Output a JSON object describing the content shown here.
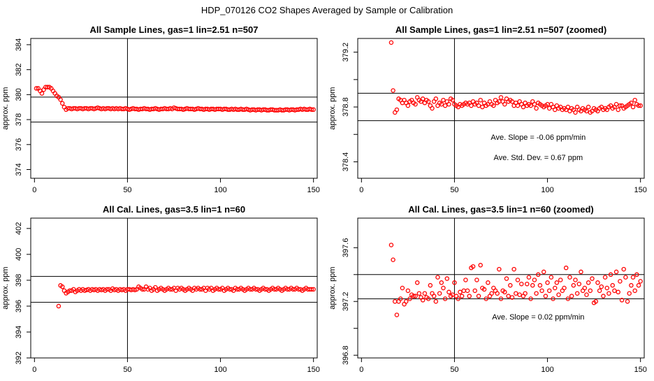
{
  "page_title": "HDP_070126  CO2 Shapes Averaged by Sample or Calibration",
  "colors": {
    "point": "#ff0000",
    "axis": "#000000",
    "line": "#000000",
    "background": "#ffffff"
  },
  "chart_data": [
    {
      "type": "scatter",
      "title": "All Sample Lines, gas=1 lin=2.51 n=507",
      "ylabel": "approx. ppm",
      "xlim": [
        -2,
        152
      ],
      "ylim": [
        373.3,
        384.5
      ],
      "xticks": [
        0,
        50,
        100,
        150
      ],
      "yticks": [
        374,
        376,
        378,
        380,
        382,
        384
      ],
      "vline": 50,
      "hlines": [
        379.8,
        377.8
      ],
      "annotations": [],
      "marker": "open-circle",
      "x": [
        1,
        2,
        3,
        4,
        5,
        6,
        7,
        8,
        9,
        10,
        11,
        12,
        13,
        14,
        15,
        16,
        17,
        18,
        19,
        20,
        21,
        22,
        23,
        24,
        25,
        26,
        27,
        28,
        29,
        30,
        31,
        32,
        33,
        34,
        35,
        36,
        37,
        38,
        39,
        40,
        41,
        42,
        43,
        44,
        45,
        46,
        47,
        48,
        49,
        50,
        51,
        52,
        53,
        54,
        55,
        56,
        57,
        58,
        59,
        60,
        61,
        62,
        63,
        64,
        65,
        66,
        67,
        68,
        69,
        70,
        71,
        72,
        73,
        74,
        75,
        76,
        77,
        78,
        79,
        80,
        81,
        82,
        83,
        84,
        85,
        86,
        87,
        88,
        89,
        90,
        91,
        92,
        93,
        94,
        95,
        96,
        97,
        98,
        99,
        100,
        101,
        102,
        103,
        104,
        105,
        106,
        107,
        108,
        109,
        110,
        111,
        112,
        113,
        114,
        115,
        116,
        117,
        118,
        119,
        120,
        121,
        122,
        123,
        124,
        125,
        126,
        127,
        128,
        129,
        130,
        131,
        132,
        133,
        134,
        135,
        136,
        137,
        138,
        139,
        140,
        141,
        142,
        143,
        144,
        145,
        146,
        147,
        148,
        149,
        150
      ],
      "y": [
        380.5,
        380.5,
        380.3,
        380.1,
        380.4,
        380.6,
        380.6,
        380.6,
        380.5,
        380.3,
        380.1,
        379.9,
        379.8,
        379.6,
        379.3,
        379.0,
        378.8,
        378.9,
        378.9,
        378.85,
        378.9,
        378.9,
        378.85,
        378.9,
        378.9,
        378.85,
        378.9,
        378.9,
        378.85,
        378.9,
        378.9,
        378.85,
        378.9,
        378.95,
        378.9,
        378.85,
        378.9,
        378.85,
        378.9,
        378.9,
        378.85,
        378.9,
        378.85,
        378.9,
        378.85,
        378.9,
        378.85,
        378.85,
        378.9,
        378.85,
        378.8,
        378.85,
        378.9,
        378.85,
        378.85,
        378.8,
        378.85,
        378.85,
        378.9,
        378.85,
        378.85,
        378.8,
        378.85,
        378.85,
        378.9,
        378.85,
        378.8,
        378.85,
        378.85,
        378.9,
        378.85,
        378.85,
        378.9,
        378.85,
        378.95,
        378.9,
        378.85,
        378.85,
        378.85,
        378.8,
        378.85,
        378.9,
        378.85,
        378.85,
        378.85,
        378.8,
        378.85,
        378.9,
        378.85,
        378.85,
        378.8,
        378.85,
        378.85,
        378.8,
        378.85,
        378.85,
        378.8,
        378.85,
        378.85,
        378.85,
        378.8,
        378.85,
        378.85,
        378.8,
        378.8,
        378.85,
        378.8,
        378.85,
        378.8,
        378.8,
        378.85,
        378.8,
        378.8,
        378.85,
        378.8,
        378.75,
        378.8,
        378.8,
        378.75,
        378.8,
        378.8,
        378.75,
        378.8,
        378.8,
        378.75,
        378.75,
        378.8,
        378.8,
        378.75,
        378.75,
        378.75,
        378.8,
        378.75,
        378.75,
        378.8,
        378.8,
        378.75,
        378.8,
        378.8,
        378.75,
        378.8,
        378.8,
        378.85,
        378.8,
        378.85,
        378.8,
        378.8,
        378.85,
        378.8,
        378.8
      ]
    },
    {
      "type": "scatter",
      "title": "All Sample Lines, gas=1 lin=2.51 n=507 (zoomed)",
      "ylabel": "approx. ppm",
      "xlim": [
        -2,
        152
      ],
      "ylim": [
        378.28,
        379.3
      ],
      "xticks": [
        0,
        50,
        100,
        150
      ],
      "yticks": [
        378.4,
        378.6,
        378.8,
        379.0,
        379.2
      ],
      "ytick_labels": [
        "378.4",
        "",
        "378.8",
        "",
        "379.2"
      ],
      "vline": 50,
      "hlines": [
        378.9,
        378.7
      ],
      "annotations": [
        "Ave. Slope =  -0.06  ppm/min",
        "Ave. Std. Dev. =  0.67  ppm"
      ],
      "marker": "open-circle",
      "x": [
        16,
        17,
        18,
        19,
        20,
        21,
        22,
        23,
        24,
        25,
        26,
        27,
        28,
        29,
        30,
        31,
        32,
        33,
        34,
        35,
        36,
        37,
        38,
        39,
        40,
        41,
        42,
        43,
        44,
        45,
        46,
        47,
        48,
        49,
        50,
        51,
        52,
        53,
        54,
        55,
        56,
        57,
        58,
        59,
        60,
        61,
        62,
        63,
        64,
        65,
        66,
        67,
        68,
        69,
        70,
        71,
        72,
        73,
        74,
        75,
        76,
        77,
        78,
        79,
        80,
        81,
        82,
        83,
        84,
        85,
        86,
        87,
        88,
        89,
        90,
        91,
        92,
        93,
        94,
        95,
        96,
        97,
        98,
        99,
        100,
        101,
        102,
        103,
        104,
        105,
        106,
        107,
        108,
        109,
        110,
        111,
        112,
        113,
        114,
        115,
        116,
        117,
        118,
        119,
        120,
        121,
        122,
        123,
        124,
        125,
        126,
        127,
        128,
        129,
        130,
        131,
        132,
        133,
        134,
        135,
        136,
        137,
        138,
        139,
        140,
        141,
        142,
        143,
        144,
        145,
        146,
        147,
        148,
        149,
        150
      ],
      "y": [
        379.27,
        378.92,
        378.76,
        378.78,
        378.86,
        378.85,
        378.83,
        378.85,
        378.83,
        378.81,
        378.84,
        378.85,
        378.83,
        378.82,
        378.87,
        378.85,
        378.84,
        378.86,
        378.83,
        378.85,
        378.84,
        378.81,
        378.79,
        378.84,
        378.86,
        378.81,
        378.83,
        378.82,
        378.85,
        378.81,
        378.84,
        378.82,
        378.86,
        378.85,
        378.82,
        378.81,
        378.8,
        378.82,
        378.81,
        378.82,
        378.83,
        378.82,
        378.83,
        378.81,
        378.84,
        378.82,
        378.83,
        378.81,
        378.85,
        378.8,
        378.83,
        378.81,
        378.82,
        378.84,
        378.82,
        378.81,
        378.85,
        378.83,
        378.84,
        378.87,
        378.84,
        378.82,
        378.86,
        378.84,
        378.85,
        378.84,
        378.81,
        378.83,
        378.81,
        378.84,
        378.82,
        378.8,
        378.83,
        378.81,
        378.82,
        378.81,
        378.84,
        378.82,
        378.79,
        378.83,
        378.82,
        378.81,
        378.8,
        378.81,
        378.82,
        378.79,
        378.82,
        378.8,
        378.78,
        378.81,
        378.79,
        378.8,
        378.78,
        378.79,
        378.78,
        378.8,
        378.77,
        378.79,
        378.78,
        378.76,
        378.8,
        378.78,
        378.77,
        378.79,
        378.78,
        378.77,
        378.8,
        378.76,
        378.77,
        378.79,
        378.78,
        378.77,
        378.79,
        378.8,
        378.78,
        378.79,
        378.78,
        378.8,
        378.81,
        378.79,
        378.8,
        378.82,
        378.78,
        378.81,
        378.81,
        378.79,
        378.8,
        378.81,
        378.82,
        378.83,
        378.8,
        378.85,
        378.82,
        378.81,
        378.81
      ]
    },
    {
      "type": "scatter",
      "title": "All Cal. Lines, gas=3.5 lin=1 n=60",
      "ylabel": "approx. ppm",
      "xlim": [
        -2,
        152
      ],
      "ylim": [
        392.0,
        402.8
      ],
      "xticks": [
        0,
        50,
        100,
        150
      ],
      "yticks": [
        392,
        394,
        396,
        398,
        400,
        402
      ],
      "vline": 50,
      "hlines": [
        398.3,
        396.3
      ],
      "annotations": [],
      "marker": "open-circle",
      "x": [
        13,
        14,
        15,
        16,
        17,
        18,
        19,
        20,
        21,
        22,
        23,
        24,
        25,
        26,
        27,
        28,
        29,
        30,
        31,
        32,
        33,
        34,
        35,
        36,
        37,
        38,
        39,
        40,
        41,
        42,
        43,
        44,
        45,
        46,
        47,
        48,
        49,
        50,
        51,
        52,
        53,
        54,
        55,
        56,
        57,
        58,
        59,
        60,
        61,
        62,
        63,
        64,
        65,
        66,
        67,
        68,
        69,
        70,
        71,
        72,
        73,
        74,
        75,
        76,
        77,
        78,
        79,
        80,
        81,
        82,
        83,
        84,
        85,
        86,
        87,
        88,
        89,
        90,
        91,
        92,
        93,
        94,
        95,
        96,
        97,
        98,
        99,
        100,
        101,
        102,
        103,
        104,
        105,
        106,
        107,
        108,
        109,
        110,
        111,
        112,
        113,
        114,
        115,
        116,
        117,
        118,
        119,
        120,
        121,
        122,
        123,
        124,
        125,
        126,
        127,
        128,
        129,
        130,
        131,
        132,
        133,
        134,
        135,
        136,
        137,
        138,
        139,
        140,
        141,
        142,
        143,
        144,
        145,
        146,
        147,
        148,
        149,
        150
      ],
      "y": [
        396.0,
        397.6,
        397.5,
        397.2,
        397.0,
        397.1,
        397.2,
        397.2,
        397.3,
        397.1,
        397.2,
        397.3,
        397.2,
        397.3,
        397.2,
        397.25,
        397.3,
        397.2,
        397.3,
        397.25,
        397.3,
        397.2,
        397.3,
        397.25,
        397.3,
        397.2,
        397.3,
        397.3,
        397.2,
        397.35,
        397.25,
        397.3,
        397.2,
        397.3,
        397.25,
        397.3,
        397.2,
        397.3,
        397.3,
        397.25,
        397.3,
        397.25,
        397.3,
        397.5,
        397.4,
        397.3,
        397.3,
        397.5,
        397.3,
        397.4,
        397.2,
        397.3,
        397.45,
        397.2,
        397.3,
        397.4,
        397.3,
        397.2,
        397.3,
        397.4,
        397.3,
        397.3,
        397.4,
        397.2,
        397.4,
        397.3,
        397.4,
        397.3,
        397.2,
        397.3,
        397.4,
        397.3,
        397.2,
        397.4,
        397.3,
        397.4,
        397.3,
        397.3,
        397.4,
        397.2,
        397.4,
        397.3,
        397.4,
        397.2,
        397.3,
        397.4,
        397.3,
        397.3,
        397.4,
        397.2,
        397.3,
        397.4,
        397.3,
        397.3,
        397.2,
        397.4,
        397.3,
        397.3,
        397.4,
        397.3,
        397.2,
        397.3,
        397.4,
        397.3,
        397.3,
        397.4,
        397.3,
        397.3,
        397.2,
        397.3,
        397.4,
        397.3,
        397.3,
        397.2,
        397.3,
        397.4,
        397.3,
        397.3,
        397.4,
        397.3,
        397.2,
        397.3,
        397.4,
        397.3,
        397.3,
        397.4,
        397.3,
        397.3,
        397.4,
        397.3,
        397.3,
        397.2,
        397.3,
        397.4,
        397.3,
        397.3,
        397.3,
        397.3
      ]
    },
    {
      "type": "scatter",
      "title": "All Cal. Lines, gas=3.5 lin=1 n=60 (zoomed)",
      "ylabel": "approx. ppm",
      "xlim": [
        -2,
        152
      ],
      "ylim": [
        396.78,
        397.82
      ],
      "xticks": [
        0,
        50,
        100,
        150
      ],
      "yticks": [
        396.8,
        397.0,
        397.2,
        397.4,
        397.6
      ],
      "ytick_labels": [
        "396.8",
        "",
        "397.2",
        "",
        "397.6"
      ],
      "vline": 50,
      "hlines": [
        397.4,
        397.22
      ],
      "annotations": [
        "Ave. Slope =  0.02  ppm/min"
      ],
      "marker": "open-circle",
      "x": [
        16,
        17,
        18,
        19,
        20,
        21,
        22,
        23,
        24,
        25,
        26,
        27,
        28,
        29,
        30,
        31,
        32,
        33,
        34,
        35,
        36,
        37,
        38,
        39,
        40,
        41,
        42,
        43,
        44,
        45,
        46,
        47,
        48,
        49,
        50,
        51,
        52,
        53,
        54,
        55,
        56,
        57,
        58,
        59,
        60,
        61,
        62,
        63,
        64,
        65,
        66,
        67,
        68,
        69,
        70,
        71,
        72,
        73,
        74,
        75,
        76,
        77,
        78,
        79,
        80,
        81,
        82,
        83,
        84,
        85,
        86,
        87,
        88,
        89,
        90,
        91,
        92,
        93,
        94,
        95,
        96,
        97,
        98,
        99,
        100,
        101,
        102,
        103,
        104,
        105,
        106,
        107,
        108,
        109,
        110,
        111,
        112,
        113,
        114,
        115,
        116,
        117,
        118,
        119,
        120,
        121,
        122,
        123,
        124,
        125,
        126,
        127,
        128,
        129,
        130,
        131,
        132,
        133,
        134,
        135,
        136,
        137,
        138,
        139,
        140,
        141,
        142,
        143,
        144,
        145,
        146,
        147,
        148,
        149,
        150
      ],
      "y": [
        397.62,
        397.51,
        397.2,
        397.1,
        397.2,
        397.22,
        397.3,
        397.18,
        397.2,
        397.28,
        397.22,
        397.25,
        397.24,
        397.24,
        397.34,
        397.26,
        397.23,
        397.21,
        397.26,
        397.23,
        397.22,
        397.32,
        397.26,
        397.24,
        397.2,
        397.38,
        397.26,
        397.34,
        397.3,
        397.22,
        397.37,
        397.27,
        397.24,
        397.25,
        397.34,
        397.24,
        397.22,
        397.27,
        397.24,
        397.28,
        397.36,
        397.28,
        397.24,
        397.45,
        397.46,
        397.28,
        397.36,
        397.24,
        397.47,
        397.3,
        397.29,
        397.22,
        397.34,
        397.24,
        397.26,
        397.3,
        397.28,
        397.26,
        397.44,
        397.22,
        397.28,
        397.27,
        397.37,
        397.24,
        397.32,
        397.23,
        397.44,
        397.26,
        397.36,
        397.25,
        397.33,
        397.24,
        397.26,
        397.33,
        397.38,
        397.22,
        397.32,
        397.36,
        397.26,
        397.4,
        397.32,
        397.28,
        397.42,
        397.24,
        397.34,
        397.28,
        397.38,
        397.22,
        397.3,
        397.34,
        397.25,
        397.36,
        397.28,
        397.3,
        397.45,
        397.22,
        397.38,
        397.24,
        397.32,
        397.36,
        397.26,
        397.33,
        397.42,
        397.28,
        397.3,
        397.25,
        397.34,
        397.28,
        397.37,
        397.19,
        397.2,
        397.34,
        397.28,
        397.31,
        397.24,
        397.38,
        397.3,
        397.26,
        397.4,
        397.32,
        397.28,
        397.42,
        397.27,
        397.35,
        397.21,
        397.44,
        397.38,
        397.2,
        397.26,
        397.32,
        397.38,
        397.28,
        397.4,
        397.32,
        397.35
      ]
    }
  ]
}
